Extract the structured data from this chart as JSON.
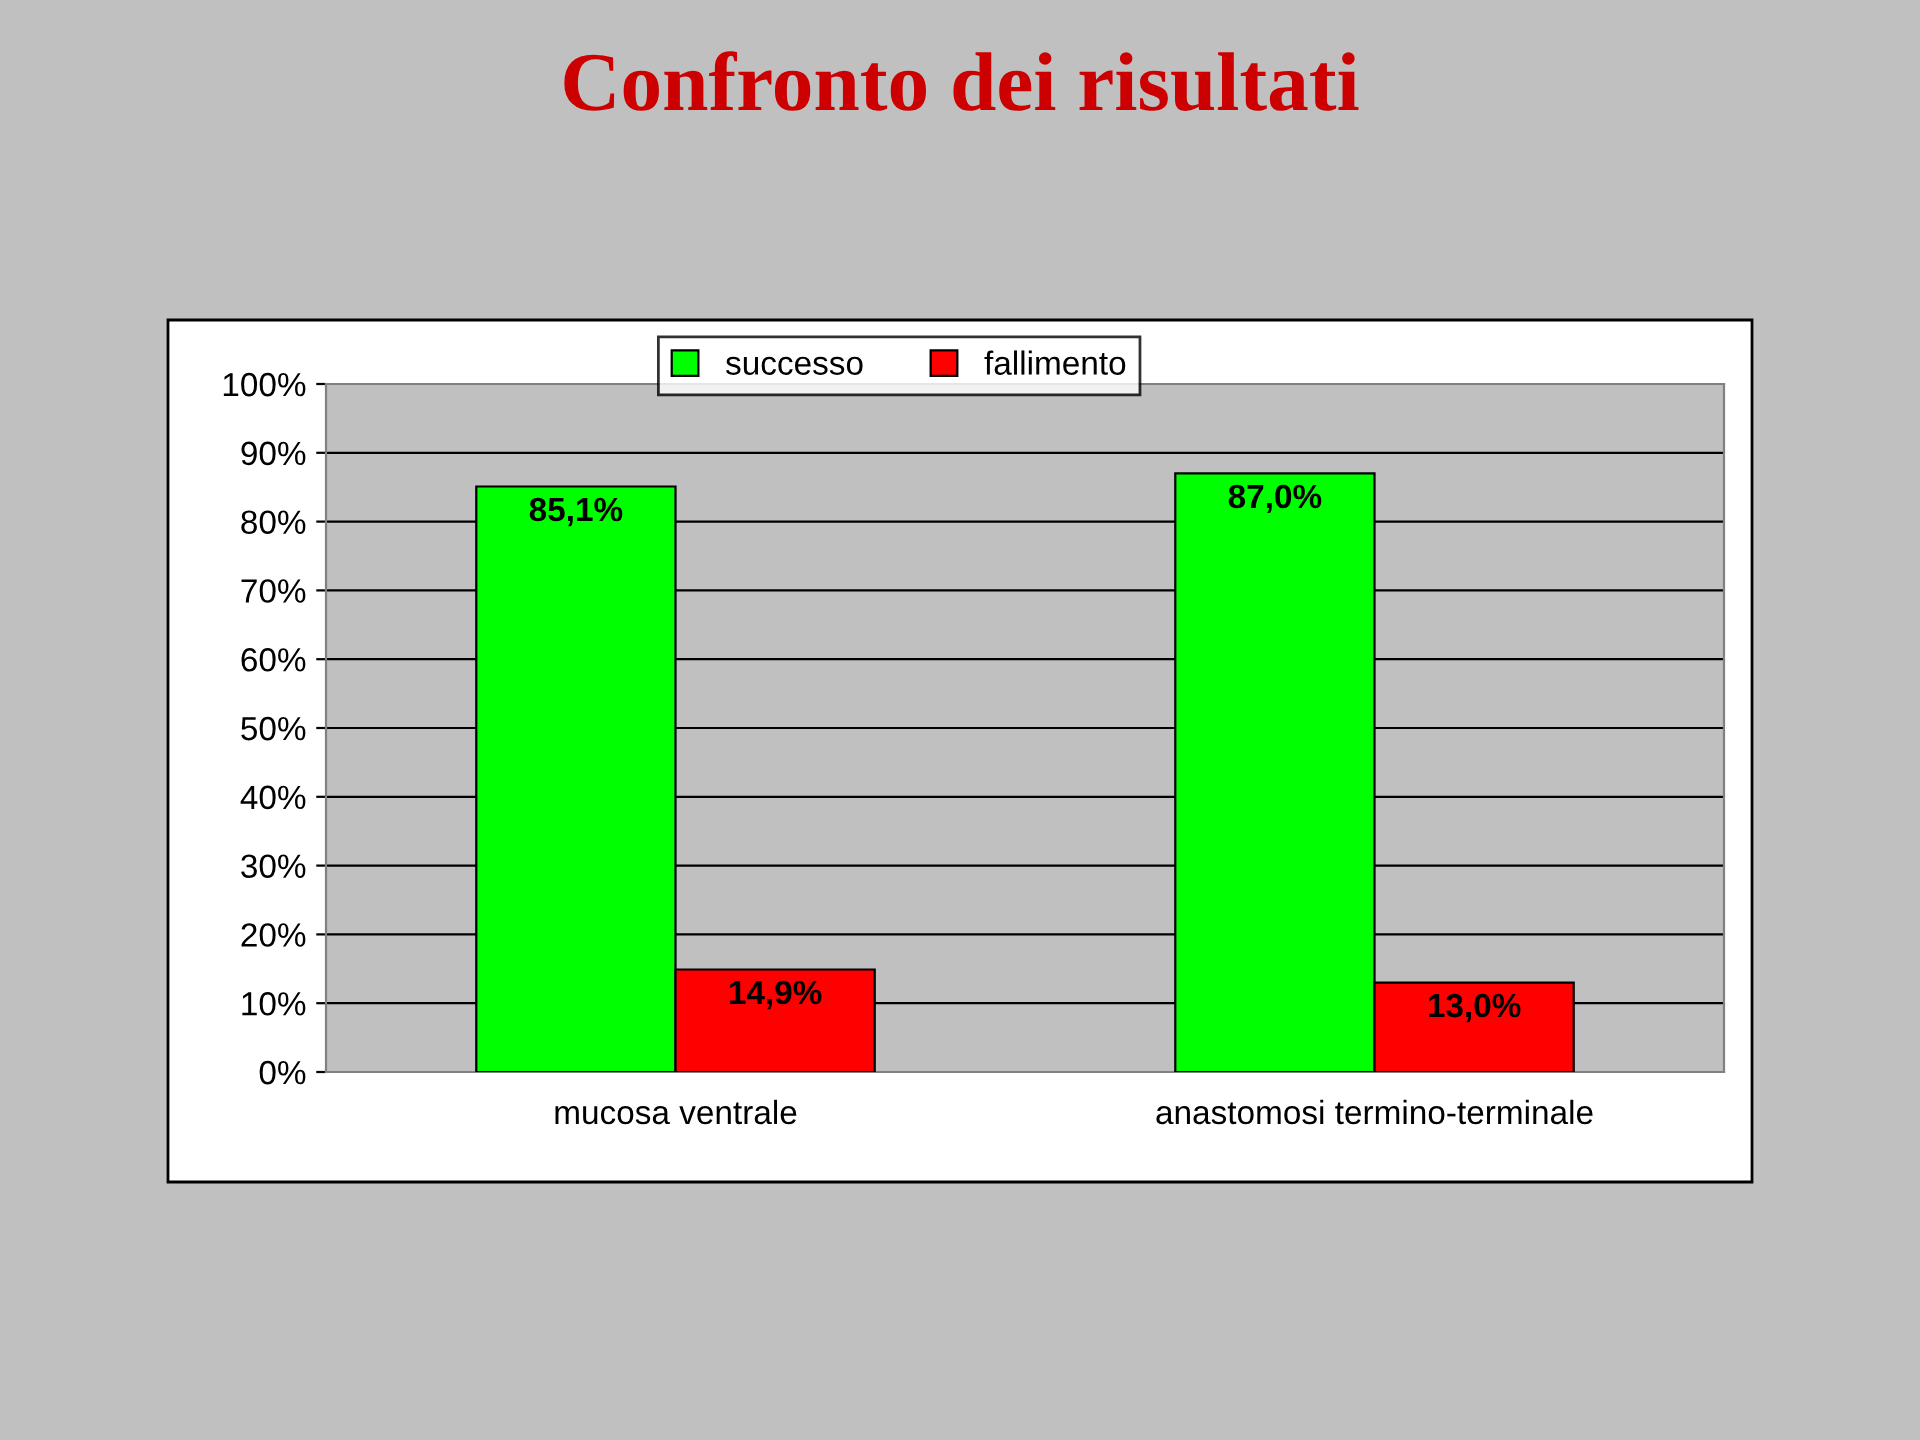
{
  "chart_data": {
    "type": "bar",
    "title": "Confronto dei risultati",
    "categories": [
      "mucosa ventrale",
      "anastomosi termino-terminale"
    ],
    "series": [
      {
        "name": "successo",
        "color": "#00ff00",
        "values": [
          85.1,
          87.0
        ],
        "value_labels": [
          "85,1%",
          "87,0%"
        ]
      },
      {
        "name": "fallimento",
        "color": "#ff0000",
        "values": [
          14.9,
          13.0
        ],
        "value_labels": [
          "14,9%",
          "13,0%"
        ]
      }
    ],
    "ylim": [
      0,
      100
    ],
    "yticks": [
      {
        "value": 0,
        "label": "0%"
      },
      {
        "value": 10,
        "label": "10%"
      },
      {
        "value": 20,
        "label": "20%"
      },
      {
        "value": 30,
        "label": "30%"
      },
      {
        "value": 40,
        "label": "40%"
      },
      {
        "value": 50,
        "label": "50%"
      },
      {
        "value": 60,
        "label": "60%"
      },
      {
        "value": 70,
        "label": "70%"
      },
      {
        "value": 80,
        "label": "80%"
      },
      {
        "value": 90,
        "label": "90%"
      },
      {
        "value": 100,
        "label": "100%"
      }
    ],
    "grid": "y",
    "legend": "top"
  }
}
